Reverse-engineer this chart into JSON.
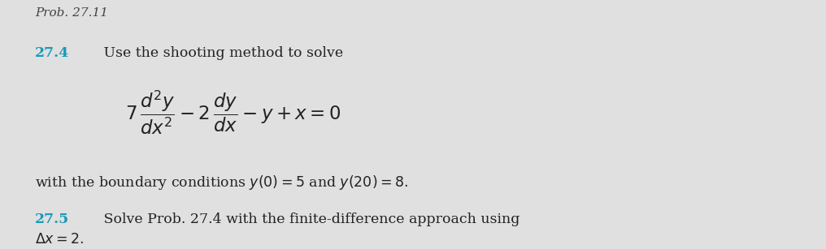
{
  "background_color": "#e0e0e0",
  "figsize": [
    10.16,
    3.07
  ],
  "dpi": 100,
  "header_text": "Prob. 27.11",
  "header_color": "#444444",
  "header_fontsize": 11,
  "problem_27_4_number": "27.4",
  "problem_27_4_color": "#1a9ab8",
  "problem_27_4_intro": " Use the shooting method to solve",
  "boundary_text": "with the boundary conditions y(0) = 5 and y(20) = 8.",
  "problem_27_5_number": "27.5",
  "problem_27_5_color": "#1a9ab8",
  "problem_27_5_text": " Solve Prob. 27.4 with the finite-difference approach using",
  "delta_text": "\\u0394x = 2.",
  "text_color": "#222222",
  "body_fontsize": 12.5,
  "number_fontsize": 12.5
}
